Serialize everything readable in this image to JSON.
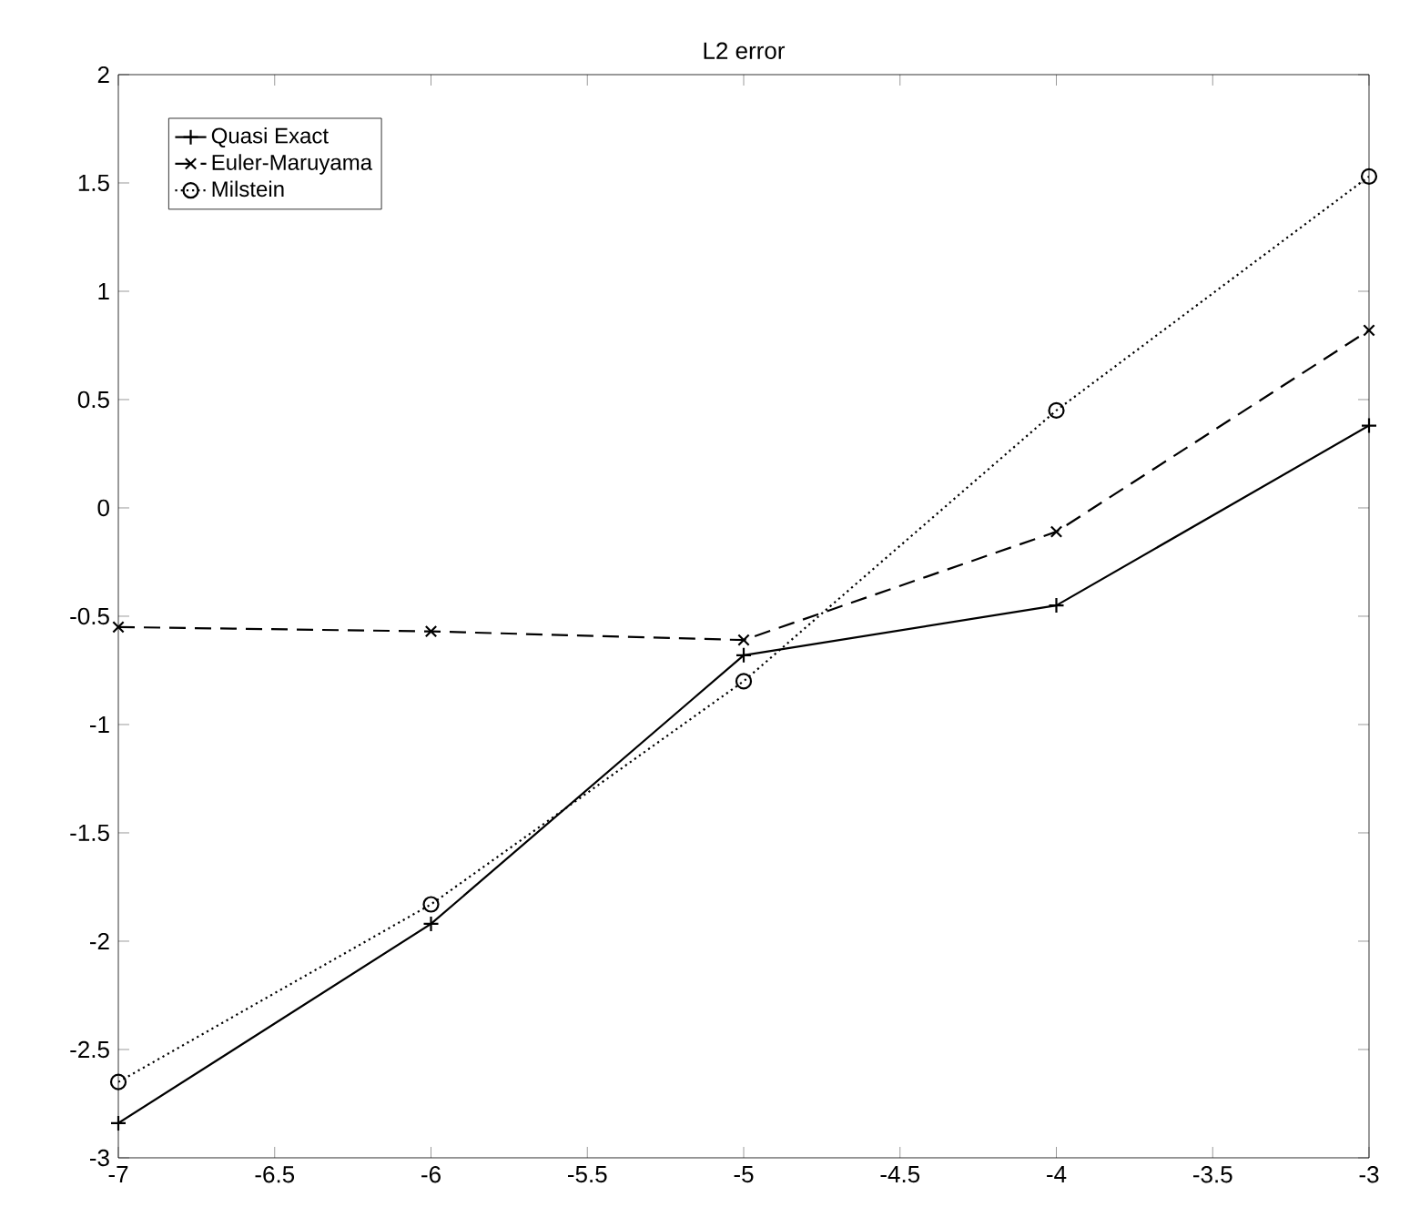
{
  "chart_data": {
    "type": "line",
    "title": "L2 error",
    "x": [
      -7,
      -6,
      -5,
      -4,
      -3
    ],
    "series": [
      {
        "name": "Quasi Exact",
        "color": "#000000",
        "values": [
          -2.84,
          -1.92,
          -0.68,
          -0.45,
          0.38
        ],
        "marker": "plus",
        "line_style": "solid"
      },
      {
        "name": "Euler-Maruyama",
        "color": "#000000",
        "values": [
          -0.55,
          -0.57,
          -0.61,
          -0.11,
          0.82
        ],
        "marker": "cross",
        "line_style": "dashed"
      },
      {
        "name": "Milstein",
        "color": "#000000",
        "values": [
          -2.65,
          -1.83,
          -0.8,
          0.45,
          1.53
        ],
        "marker": "circle",
        "line_style": "dotted"
      }
    ],
    "xlim": [
      -7,
      -3
    ],
    "ylim": [
      -3,
      2
    ],
    "xticks": [
      -7,
      -6.5,
      -6,
      -5.5,
      -5,
      -4.5,
      -4,
      -3.5,
      -3
    ],
    "yticks": [
      -3,
      -2.5,
      -2,
      -1.5,
      -1,
      -0.5,
      0,
      0.5,
      1,
      1.5,
      2
    ],
    "grid": false,
    "legend": "top left"
  }
}
